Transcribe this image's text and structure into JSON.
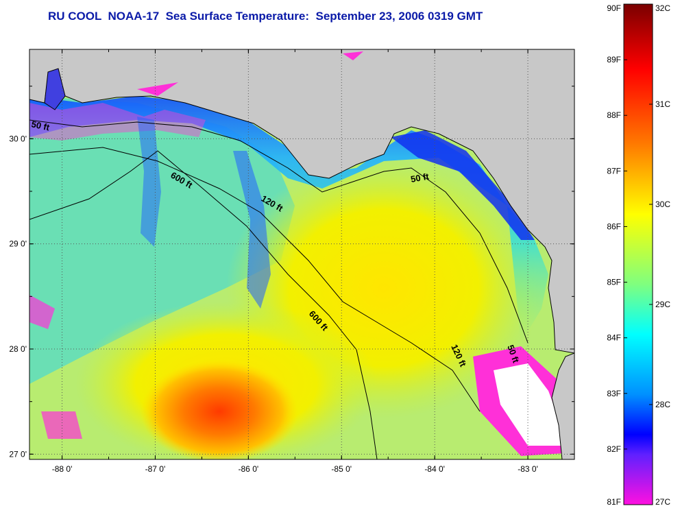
{
  "title": "RU COOL  NOAA-17  Sea Surface Temperature:  September 23, 2006 0319 GMT",
  "map": {
    "lon_range": [
      -88.35,
      -82.5
    ],
    "lat_range": [
      26.95,
      30.85
    ],
    "x_ticks": [
      {
        "value": -88,
        "label": "-88 0'"
      },
      {
        "value": -87,
        "label": "-87 0'"
      },
      {
        "value": -86,
        "label": "-86 0'"
      },
      {
        "value": -85,
        "label": "-85 0'"
      },
      {
        "value": -84,
        "label": "-84 0'"
      },
      {
        "value": -83,
        "label": "-83 0'"
      }
    ],
    "y_ticks": [
      {
        "value": 30,
        "label": "30 0'"
      },
      {
        "value": 29,
        "label": "29 0'"
      },
      {
        "value": 28,
        "label": "28 0'"
      },
      {
        "value": 27,
        "label": "27 0'"
      }
    ],
    "grid": "dotted",
    "land_color": "#c8c8c8",
    "contour_labels": [
      {
        "text": "50 ft"
      },
      {
        "text": "600 ft"
      },
      {
        "text": "120 ft"
      },
      {
        "text": "50 ft"
      },
      {
        "text": "600 ft"
      },
      {
        "text": "120 ft"
      },
      {
        "text": "50 ft"
      }
    ]
  },
  "colorbar": {
    "fahrenheit": [
      "90F",
      "89F",
      "88F",
      "87F",
      "86F",
      "85F",
      "84F",
      "83F",
      "82F",
      "81F"
    ],
    "celsius": [
      "32C",
      "31C",
      "30C",
      "29C",
      "28C",
      "27C"
    ],
    "range_c": [
      27,
      32
    ],
    "colors": [
      "#8b0000",
      "#ff0000",
      "#ff8000",
      "#ffff00",
      "#80ff80",
      "#00ffff",
      "#0080ff",
      "#0000ff",
      "#8000ff",
      "#ff00ff"
    ]
  }
}
